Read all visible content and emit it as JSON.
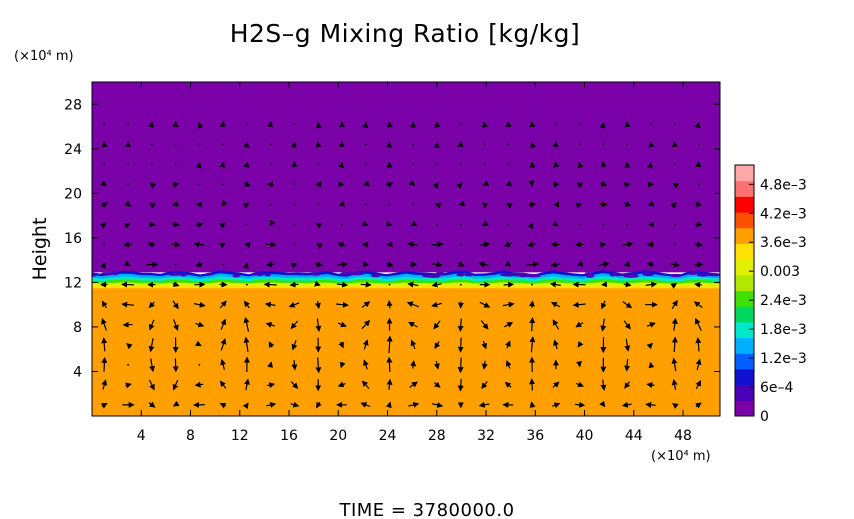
{
  "chart_data": {
    "type": "heatmap",
    "title": "H2S–g Mixing Ratio [kg/kg]",
    "xunit": "(×10⁴ m)",
    "yunit": "(×10⁴ m)",
    "ylabel": "Height",
    "time_label": "TIME  =  3780000.0",
    "xlim": [
      0,
      51
    ],
    "ylim": [
      0,
      30
    ],
    "x_ticks": [
      4,
      8,
      12,
      16,
      20,
      24,
      28,
      32,
      36,
      40,
      44,
      48
    ],
    "y_ticks": [
      4,
      8,
      12,
      16,
      20,
      24,
      28
    ],
    "colorbar": {
      "min": 0,
      "max": 0.0052,
      "ticks": [
        {
          "value": 0,
          "label": "0"
        },
        {
          "value": 0.0006,
          "label": "6e–4"
        },
        {
          "value": 0.0012,
          "label": "1.2e–3"
        },
        {
          "value": 0.0018,
          "label": "1.8e–3"
        },
        {
          "value": 0.0024,
          "label": "2.4e–3"
        },
        {
          "value": 0.003,
          "label": "0.003"
        },
        {
          "value": 0.0036,
          "label": "3.6e–3"
        },
        {
          "value": 0.0042,
          "label": "4.2e–3"
        },
        {
          "value": 0.0048,
          "label": "4.8e–3"
        }
      ],
      "colors": [
        "#7a00a8",
        "#4b00b8",
        "#1010d0",
        "#0060ff",
        "#00b0ff",
        "#00e8c8",
        "#00d860",
        "#40e000",
        "#b0e800",
        "#e0f000",
        "#ffe000",
        "#ffa000",
        "#ff5000",
        "#ff0000",
        "#ff7070",
        "#ffa8a8"
      ]
    },
    "field": {
      "lower_layer_top": 12.9,
      "lower_layer_value": 0.0037,
      "upper_layer_value": 0.0,
      "interface_values": [
        0.0007,
        0.0013,
        0.0019,
        0.0024,
        0.003,
        0.0034
      ]
    },
    "vectors": {
      "present": true,
      "color": "#000000"
    }
  }
}
